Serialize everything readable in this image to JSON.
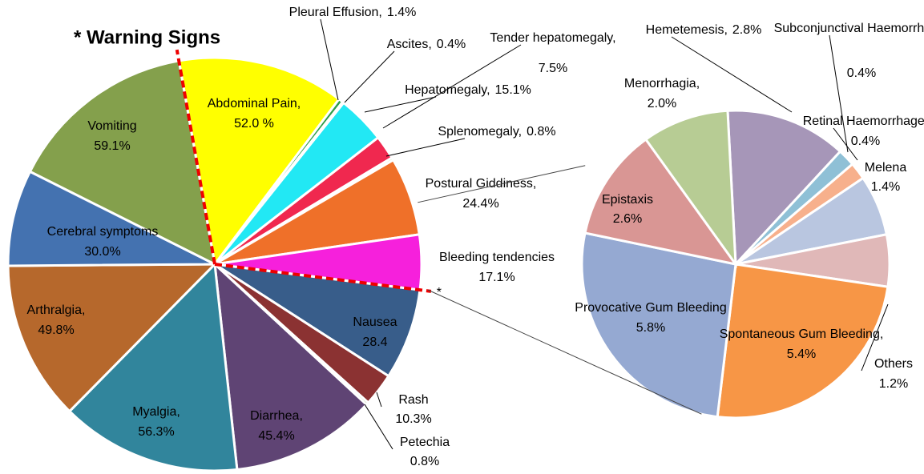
{
  "chart_data": [
    {
      "type": "pie",
      "annotation": "* Warning Signs",
      "marker": "*",
      "categories": [
        "Abdominal  Pain,",
        "Pleural Effusion,",
        "Ascites,",
        "Hepatomegaly,",
        "Tender hepatomegaly,",
        "Splenomegaly,",
        "Postural Giddiness,",
        "Bleeding tendencies",
        "Nausea",
        "Rash",
        "Petechia",
        "Diarrhea,",
        "Myalgia,",
        "Arthralgia,",
        "Cerebral symptoms",
        "Vomiting"
      ],
      "values": [
        52.0,
        1.4,
        0.4,
        15.1,
        7.5,
        0.8,
        24.4,
        17.1,
        28.4,
        10.3,
        0.8,
        45.4,
        56.3,
        49.8,
        30.0,
        59.1
      ],
      "value_labels": [
        "52.0 %",
        "1.4%",
        "0.4%",
        "15.1%",
        "7.5%",
        "0.8%",
        "24.4%",
        "17.1%",
        "28.4",
        "10.3%",
        "0.8%",
        "45.4%",
        "56.3%",
        "49.8%",
        "30.0%",
        "59.1%"
      ],
      "colors": [
        "#ffff00",
        "#2e9e4a",
        "#9bbb59",
        "#22e8f4",
        "#f0284f",
        "#b9d37a",
        "#ef7029",
        "#f620dc",
        "#385d8a",
        "#8b3232",
        "#77933c",
        "#5f4474",
        "#31859c",
        "#b6682c",
        "#4472b0",
        "#84a04c"
      ]
    },
    {
      "type": "pie",
      "categories": [
        "Hemetemesis,",
        "Subconjunctival Haemorrhage,",
        "Retinal Haemorrhage,",
        "Melena",
        "Others",
        "Spontaneous Gum Bleeding,",
        "Provocative Gum Bleeding",
        "Epistaxis",
        "Menorrhagia,"
      ],
      "values": [
        2.8,
        0.4,
        0.4,
        1.4,
        1.2,
        5.4,
        5.8,
        2.6,
        2.0
      ],
      "value_labels": [
        "2.8%",
        "0.4%",
        "0.4%",
        "1.4%",
        "1.2%",
        "5.4%",
        "5.8%",
        "2.6%",
        "2.0%"
      ],
      "colors": [
        "#a696b8",
        "#8fc0d6",
        "#f7b08c",
        "#b9c6e0",
        "#e0b8b8",
        "#f79646",
        "#95a9d2",
        "#d99694",
        "#b7cc94"
      ]
    }
  ]
}
